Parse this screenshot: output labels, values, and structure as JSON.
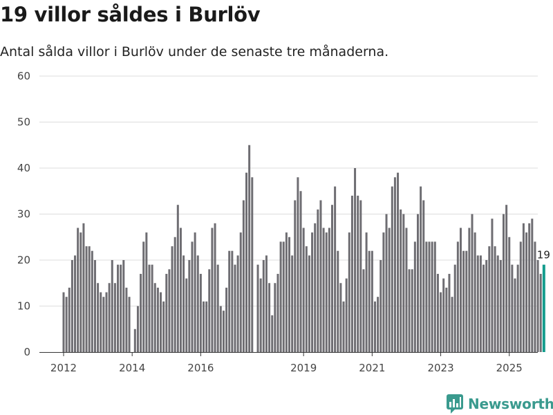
{
  "title": "19 villor såldes i Burlöv",
  "subtitle": "Antal sålda villor i Burlöv under de senaste tre månaderna.",
  "brand": {
    "name": "Newsworthy",
    "icon": "newsworthy-logo-icon"
  },
  "colors": {
    "bar": "#6e6d72",
    "highlight": "#139c8d",
    "grid": "#dddddd",
    "axis": "#444444",
    "brand": "#3a9a8e"
  },
  "chart_data": {
    "type": "bar",
    "title": "19 villor såldes i Burlöv",
    "xlabel": "",
    "ylabel": "",
    "ylim": [
      0,
      60
    ],
    "yticks": [
      "0",
      "10",
      "20",
      "30",
      "40",
      "50",
      "60"
    ],
    "xticks": [
      {
        "label": "2012",
        "index": 0
      },
      {
        "label": "2014",
        "index": 24
      },
      {
        "label": "2016",
        "index": 48
      },
      {
        "label": "2019",
        "index": 84
      },
      {
        "label": "2021",
        "index": 108
      },
      {
        "label": "2023",
        "index": 132
      },
      {
        "label": "2025",
        "index": 156
      }
    ],
    "start": "2012-01",
    "frequency": "monthly",
    "series": [
      {
        "name": "Antal sålda villor",
        "values": [
          13,
          12,
          14,
          20,
          21,
          27,
          26,
          28,
          23,
          23,
          22,
          20,
          15,
          13,
          12,
          13,
          15,
          20,
          15,
          19,
          19,
          20,
          14,
          12,
          0,
          5,
          10,
          17,
          24,
          26,
          19,
          19,
          15,
          14,
          13,
          11,
          17,
          18,
          23,
          25,
          32,
          27,
          21,
          16,
          20,
          24,
          26,
          21,
          17,
          11,
          11,
          18,
          27,
          28,
          19,
          10,
          9,
          14,
          22,
          22,
          19,
          21,
          26,
          33,
          39,
          45,
          38,
          0,
          19,
          16,
          20,
          21,
          15,
          8,
          15,
          17,
          24,
          24,
          26,
          25,
          21,
          33,
          38,
          35,
          27,
          23,
          21,
          26,
          28,
          31,
          33,
          27,
          26,
          27,
          32,
          36,
          22,
          15,
          11,
          16,
          26,
          34,
          40,
          34,
          33,
          18,
          26,
          22,
          22,
          11,
          12,
          20,
          26,
          30,
          27,
          36,
          38,
          39,
          31,
          30,
          27,
          18,
          18,
          24,
          30,
          36,
          33,
          24,
          24,
          24,
          24,
          17,
          13,
          16,
          14,
          17,
          12,
          19,
          24,
          27,
          22,
          22,
          27,
          30,
          26,
          21,
          21,
          19,
          20,
          23,
          29,
          23,
          21,
          20,
          30,
          32,
          25,
          19,
          16,
          19,
          24,
          28,
          26,
          28,
          29,
          24,
          20,
          17,
          19
        ]
      }
    ],
    "last_value_label": "19",
    "highlight_last": true
  }
}
